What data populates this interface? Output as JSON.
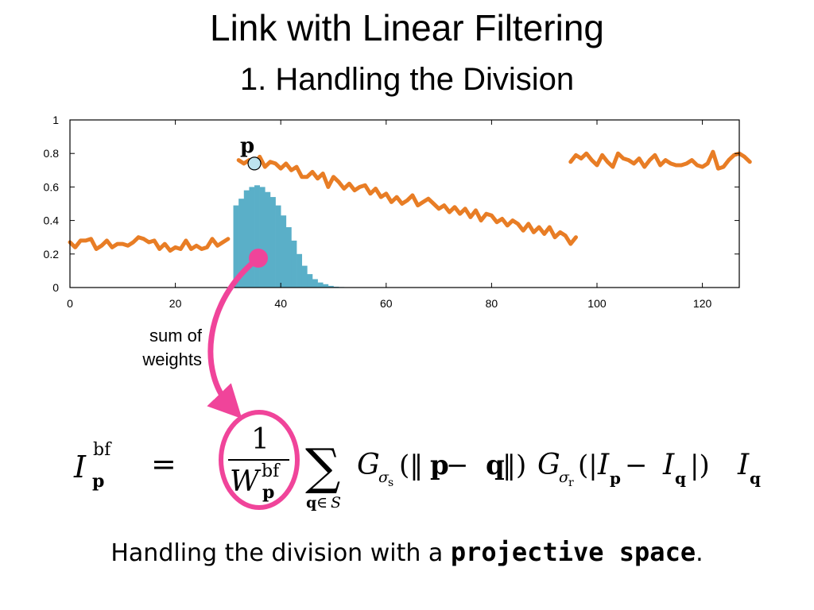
{
  "slide": {
    "title": "Link with Linear Filtering",
    "subtitle": "1. Handling the Division"
  },
  "annotation": {
    "line1": "sum of",
    "line2": "weights",
    "point_label": "p"
  },
  "equation": {
    "lhs_symbol": "I",
    "lhs_sup": "bf",
    "lhs_sub": "p",
    "equals": "=",
    "numerator": "1",
    "denom_symbol": "W",
    "denom_sup": "bf",
    "denom_sub": "p",
    "sum_symbol": "∑",
    "sum_sub_q": "q",
    "sum_sub_in": "∈",
    "sum_sub_set": "S",
    "g1": "G",
    "g1_sub": "σ",
    "g1_subsub": "s",
    "g1_arg_open": "(‖",
    "g1_p": "p",
    "g1_minus": " − ",
    "g1_q": "q",
    "g1_arg_close": "‖)",
    "g2": "G",
    "g2_sub": "σ",
    "g2_subsub": "r",
    "g2_arg_open": "(|",
    "g2_I1": "I",
    "g2_I1_sub": "p",
    "g2_minus": " − ",
    "g2_I2": "I",
    "g2_I2_sub": "q",
    "g2_arg_close": "|)",
    "tail": "I",
    "tail_sub": "q"
  },
  "caption": {
    "prefix": "Handling the division with a ",
    "emphasis": "projective space",
    "suffix": "."
  },
  "chart_data": {
    "type": "line",
    "xlim": [
      0,
      127
    ],
    "ylim": [
      0,
      1
    ],
    "xticks": [
      0,
      20,
      40,
      60,
      80,
      100,
      120
    ],
    "yticks": [
      0,
      0.2,
      0.4,
      0.6,
      0.8,
      1
    ],
    "ytick_labels": [
      "0",
      "0.2",
      "0.4",
      "0.6",
      "0.8",
      "1"
    ],
    "grid": false,
    "colors": {
      "signal": "#e87d25",
      "weights": "#5aafc8",
      "marker": "#bde3ef",
      "arrow": "#f0449a"
    },
    "series": [
      {
        "kind": "line",
        "x_start": 0,
        "values": [
          0.27,
          0.24,
          0.28,
          0.28,
          0.29,
          0.23,
          0.25,
          0.28,
          0.24,
          0.26,
          0.26,
          0.25,
          0.27,
          0.3,
          0.29,
          0.27,
          0.28,
          0.23,
          0.26,
          0.22,
          0.24,
          0.23,
          0.28,
          0.23,
          0.25,
          0.23,
          0.24,
          0.29,
          0.25,
          0.27,
          0.29
        ]
      },
      {
        "kind": "line",
        "x_start": 32,
        "values": [
          0.76,
          0.74,
          0.76,
          0.74,
          0.78,
          0.72,
          0.75,
          0.74,
          0.71,
          0.74,
          0.7,
          0.72,
          0.66,
          0.66,
          0.69,
          0.65,
          0.68,
          0.6,
          0.66,
          0.63,
          0.59,
          0.62,
          0.58,
          0.6,
          0.61,
          0.56,
          0.59,
          0.54,
          0.56,
          0.51,
          0.54,
          0.5,
          0.52,
          0.55,
          0.49,
          0.51,
          0.53,
          0.5,
          0.47,
          0.49,
          0.45,
          0.48,
          0.44,
          0.47,
          0.42,
          0.46,
          0.4,
          0.44,
          0.43,
          0.39,
          0.41,
          0.37,
          0.4,
          0.38,
          0.34,
          0.38,
          0.33,
          0.36,
          0.32,
          0.36,
          0.3,
          0.33,
          0.31,
          0.26,
          0.3
        ]
      },
      {
        "kind": "line",
        "x_start": 95,
        "values": [
          0.75,
          0.79,
          0.77,
          0.8,
          0.76,
          0.73,
          0.79,
          0.75,
          0.72,
          0.8,
          0.77,
          0.76,
          0.74,
          0.77,
          0.72,
          0.76,
          0.79,
          0.73,
          0.76,
          0.74,
          0.73,
          0.73,
          0.74,
          0.76,
          0.73,
          0.72,
          0.74,
          0.81,
          0.71,
          0.72,
          0.76,
          0.79,
          0.8,
          0.78,
          0.75
        ]
      },
      {
        "kind": "bar",
        "x_start": 31,
        "values": [
          0.49,
          0.53,
          0.58,
          0.6,
          0.61,
          0.6,
          0.57,
          0.54,
          0.49,
          0.43,
          0.36,
          0.28,
          0.2,
          0.13,
          0.08,
          0.05,
          0.03,
          0.02,
          0.01,
          0.005,
          0.003,
          0.002
        ]
      }
    ],
    "highlight_point": {
      "x": 35,
      "y": 0.74
    }
  }
}
